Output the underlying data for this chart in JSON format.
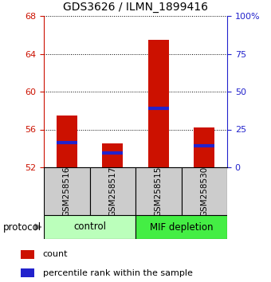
{
  "title": "GDS3626 / ILMN_1899416",
  "samples": [
    "GSM258516",
    "GSM258517",
    "GSM258515",
    "GSM258530"
  ],
  "bar_tops": [
    57.5,
    54.5,
    65.5,
    56.2
  ],
  "bar_bottom": 52.0,
  "percentile_values": [
    54.6,
    53.5,
    58.2,
    54.3
  ],
  "ylim_left": [
    52,
    68
  ],
  "ylim_right": [
    0,
    100
  ],
  "yticks_left": [
    52,
    56,
    60,
    64,
    68
  ],
  "yticks_right": [
    0,
    25,
    50,
    75,
    100
  ],
  "yticklabels_right": [
    "0",
    "25",
    "50",
    "75",
    "100%"
  ],
  "bar_color": "#cc1100",
  "percentile_color": "#2222cc",
  "bar_width": 0.45,
  "groups": [
    {
      "label": "control",
      "indices": [
        0,
        1
      ],
      "color": "#bbffbb"
    },
    {
      "label": "MIF depletion",
      "indices": [
        2,
        3
      ],
      "color": "#44ee44"
    }
  ],
  "left_tick_color": "#cc1100",
  "right_tick_color": "#2222cc",
  "grid_color": "#000000",
  "legend_count_label": "count",
  "legend_percentile_label": "percentile rank within the sample",
  "protocol_label": "protocol"
}
